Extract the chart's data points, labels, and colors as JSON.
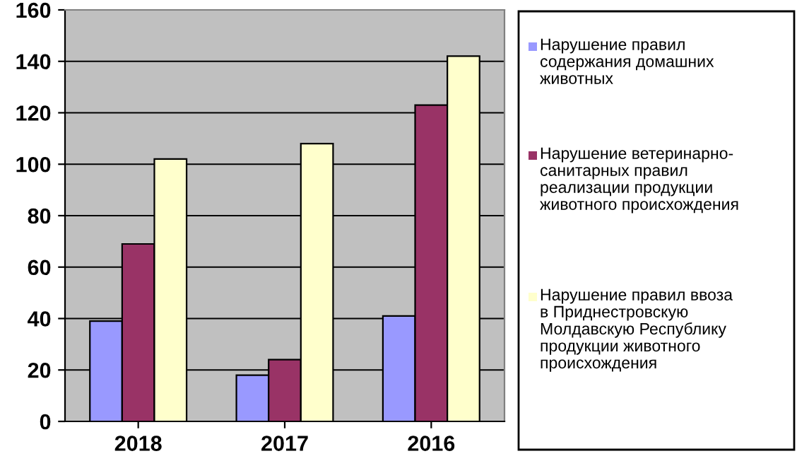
{
  "chart_data": {
    "type": "bar",
    "categories": [
      "2018",
      "2017",
      "2016"
    ],
    "series": [
      {
        "name": "Нарушение правил\nсодержания домашних\nживотных",
        "color": "#9999ff",
        "values": [
          39,
          18,
          41
        ]
      },
      {
        "name": "Нарушение ветеринарно-\nсанитарных правил\nреализации продукции\nживотного происхождения",
        "color": "#993366",
        "values": [
          69,
          24,
          123
        ]
      },
      {
        "name": "Нарушение правил ввоза\nв Приднестровскую\nМолдавскую Республику\nпродукции животного\nпроисхождения",
        "color": "#ffffcc",
        "values": [
          102,
          108,
          142
        ]
      }
    ],
    "ylim": [
      0,
      160
    ],
    "yticks": [
      0,
      20,
      40,
      60,
      80,
      100,
      120,
      140,
      160
    ],
    "grid": "y",
    "legend": "right"
  }
}
